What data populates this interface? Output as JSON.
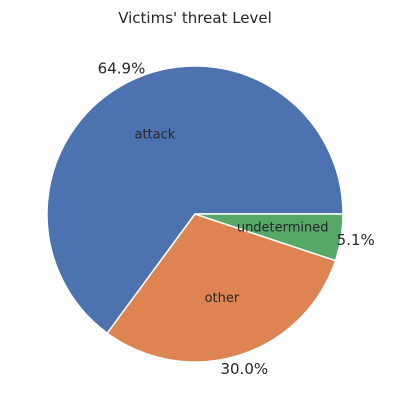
{
  "chart_data": {
    "type": "pie",
    "title": "Victims' threat Level",
    "slices": [
      {
        "label": "attack",
        "value": 64.9,
        "pct_label": "64.9%",
        "color": "#4c72b0"
      },
      {
        "label": "other",
        "value": 30.0,
        "pct_label": "30.0%",
        "color": "#dd8452"
      },
      {
        "label": "undetermined",
        "value": 5.1,
        "pct_label": "5.1%",
        "color": "#55a868"
      }
    ],
    "start_angle_deg": 0,
    "direction": "counterclockwise",
    "slice_edge_color": "#ffffff"
  }
}
